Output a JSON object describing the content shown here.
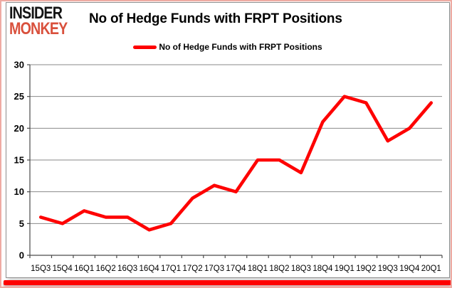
{
  "logo": {
    "line1": "INSIDER",
    "line2": "MONKEY",
    "accent_color": "#d9503c"
  },
  "title": "No of Hedge Funds with FRPT Positions",
  "legend": {
    "label": "No of Hedge Funds with FRPT Positions",
    "swatch_color": "#fe0000"
  },
  "colors": {
    "series_line": "#fe0000",
    "grid": "#8a8a8a",
    "axis": "#4a4a4a",
    "tick_text": "#000000",
    "card_border": "#8f8f8f",
    "outer_frame": "#efaba3",
    "bottom_bar": "#fe0000"
  },
  "chart_data": {
    "type": "line",
    "title": "No of Hedge Funds with FRPT Positions",
    "categories": [
      "15Q3",
      "15Q4",
      "16Q1",
      "16Q2",
      "16Q3",
      "16Q4",
      "17Q1",
      "17Q2",
      "17Q3",
      "17Q4",
      "18Q1",
      "18Q2",
      "18Q3",
      "18Q4",
      "19Q1",
      "19Q2",
      "19Q3",
      "19Q4",
      "20Q1"
    ],
    "series": [
      {
        "name": "No of Hedge Funds with FRPT Positions",
        "color": "#fe0000",
        "values": [
          6,
          5,
          7,
          6,
          6,
          4,
          5,
          9,
          11,
          10,
          15,
          15,
          13,
          21,
          25,
          24,
          18,
          20,
          24
        ]
      }
    ],
    "xlabel": "",
    "ylabel": "",
    "ylim": [
      0,
      30
    ],
    "ytick_step": 5,
    "grid": true,
    "legend_position": "top-center"
  }
}
